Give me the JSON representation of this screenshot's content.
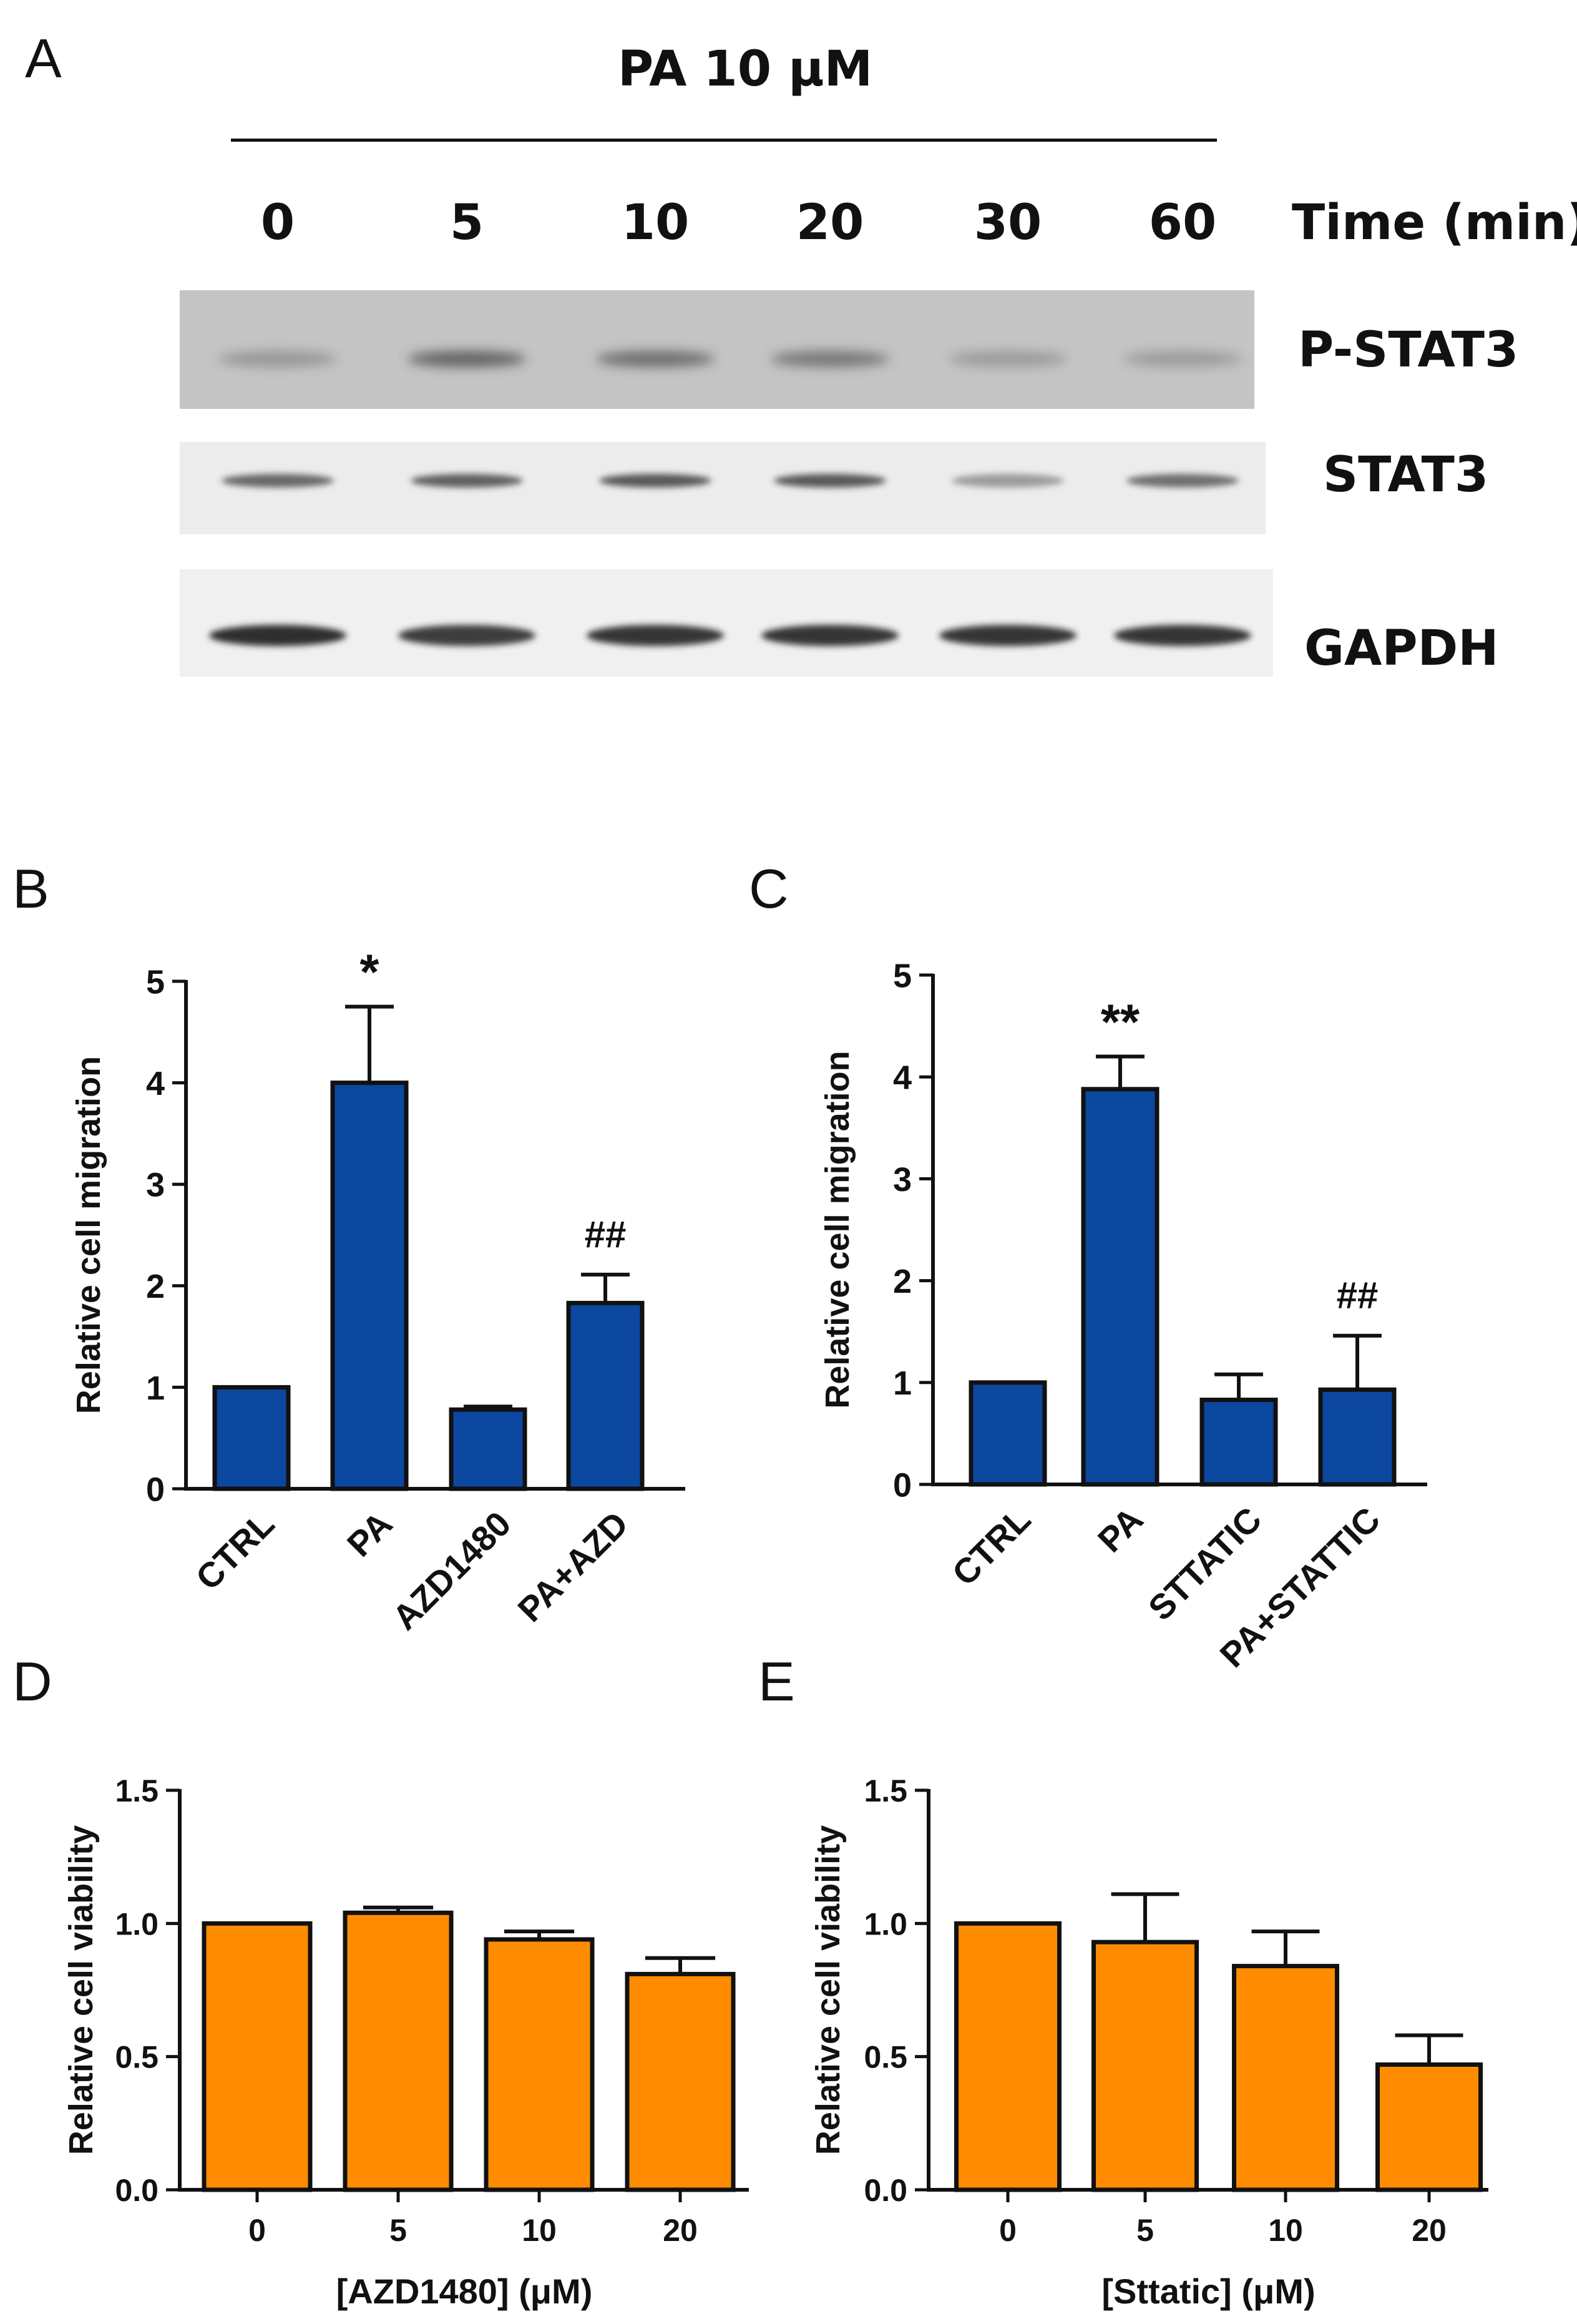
{
  "panels": {
    "a": "A",
    "b": "B",
    "c": "C",
    "d": "D",
    "e": "E"
  },
  "western_blot": {
    "treatment_label": "PA 10 μM",
    "time_points": [
      "0",
      "5",
      "10",
      "20",
      "30",
      "60"
    ],
    "time_label": "Time (min)",
    "rows": [
      {
        "name": "P-STAT3",
        "intensity": [
          0.25,
          0.75,
          0.65,
          0.55,
          0.2,
          0.2
        ]
      },
      {
        "name": "STAT3",
        "intensity": [
          0.7,
          0.75,
          0.8,
          0.8,
          0.35,
          0.65
        ]
      },
      {
        "name": "GAPDH",
        "intensity": [
          1.0,
          0.9,
          0.95,
          0.95,
          0.95,
          0.95
        ]
      }
    ]
  },
  "chart_data": [
    {
      "type": "bar",
      "panel": "B",
      "categories": [
        "CTRL",
        "PA",
        "AZD1480",
        "PA+AZD"
      ],
      "values": [
        1.0,
        4.0,
        0.78,
        1.83
      ],
      "errors": [
        0,
        0.75,
        0.03,
        0.28
      ],
      "annotations": [
        "",
        "*",
        "",
        "##"
      ],
      "ylabel": "Relative cell migration",
      "xlabel": "",
      "ylim": [
        0,
        5
      ],
      "yticks": [
        "0",
        "1",
        "2",
        "3",
        "4",
        "5"
      ],
      "color": "#0c47a0"
    },
    {
      "type": "bar",
      "panel": "C",
      "categories": [
        "CTRL",
        "PA",
        "STTATIC",
        "PA+STATTIC"
      ],
      "values": [
        1.0,
        3.88,
        0.83,
        0.93
      ],
      "errors": [
        0,
        0.32,
        0.25,
        0.53
      ],
      "annotations": [
        "",
        "**",
        "",
        "##"
      ],
      "ylabel": "Relative cell migration",
      "xlabel": "",
      "ylim": [
        0,
        5
      ],
      "yticks": [
        "0",
        "1",
        "2",
        "3",
        "4",
        "5"
      ],
      "color": "#0c47a0"
    },
    {
      "type": "bar",
      "panel": "D",
      "categories": [
        "0",
        "5",
        "10",
        "20"
      ],
      "values": [
        1.0,
        1.04,
        0.94,
        0.81
      ],
      "errors": [
        0,
        0.02,
        0.03,
        0.06
      ],
      "annotations": [
        "",
        "",
        "",
        ""
      ],
      "ylabel": "Relative cell viability",
      "xlabel": "[AZD1480] (μM)",
      "ylim": [
        0,
        1.5
      ],
      "yticks": [
        "0.0",
        "0.5",
        "1.0",
        "1.5"
      ],
      "color": "#ff8c00"
    },
    {
      "type": "bar",
      "panel": "E",
      "categories": [
        "0",
        "5",
        "10",
        "20"
      ],
      "values": [
        1.0,
        0.93,
        0.84,
        0.47
      ],
      "errors": [
        0,
        0.18,
        0.13,
        0.11
      ],
      "annotations": [
        "",
        "",
        "",
        ""
      ],
      "ylabel": "Relative cell viability",
      "xlabel": "[Sttatic] (μM)",
      "ylim": [
        0,
        1.5
      ],
      "yticks": [
        "0.0",
        "0.5",
        "1.0",
        "1.5"
      ],
      "color": "#ff8c00"
    }
  ]
}
